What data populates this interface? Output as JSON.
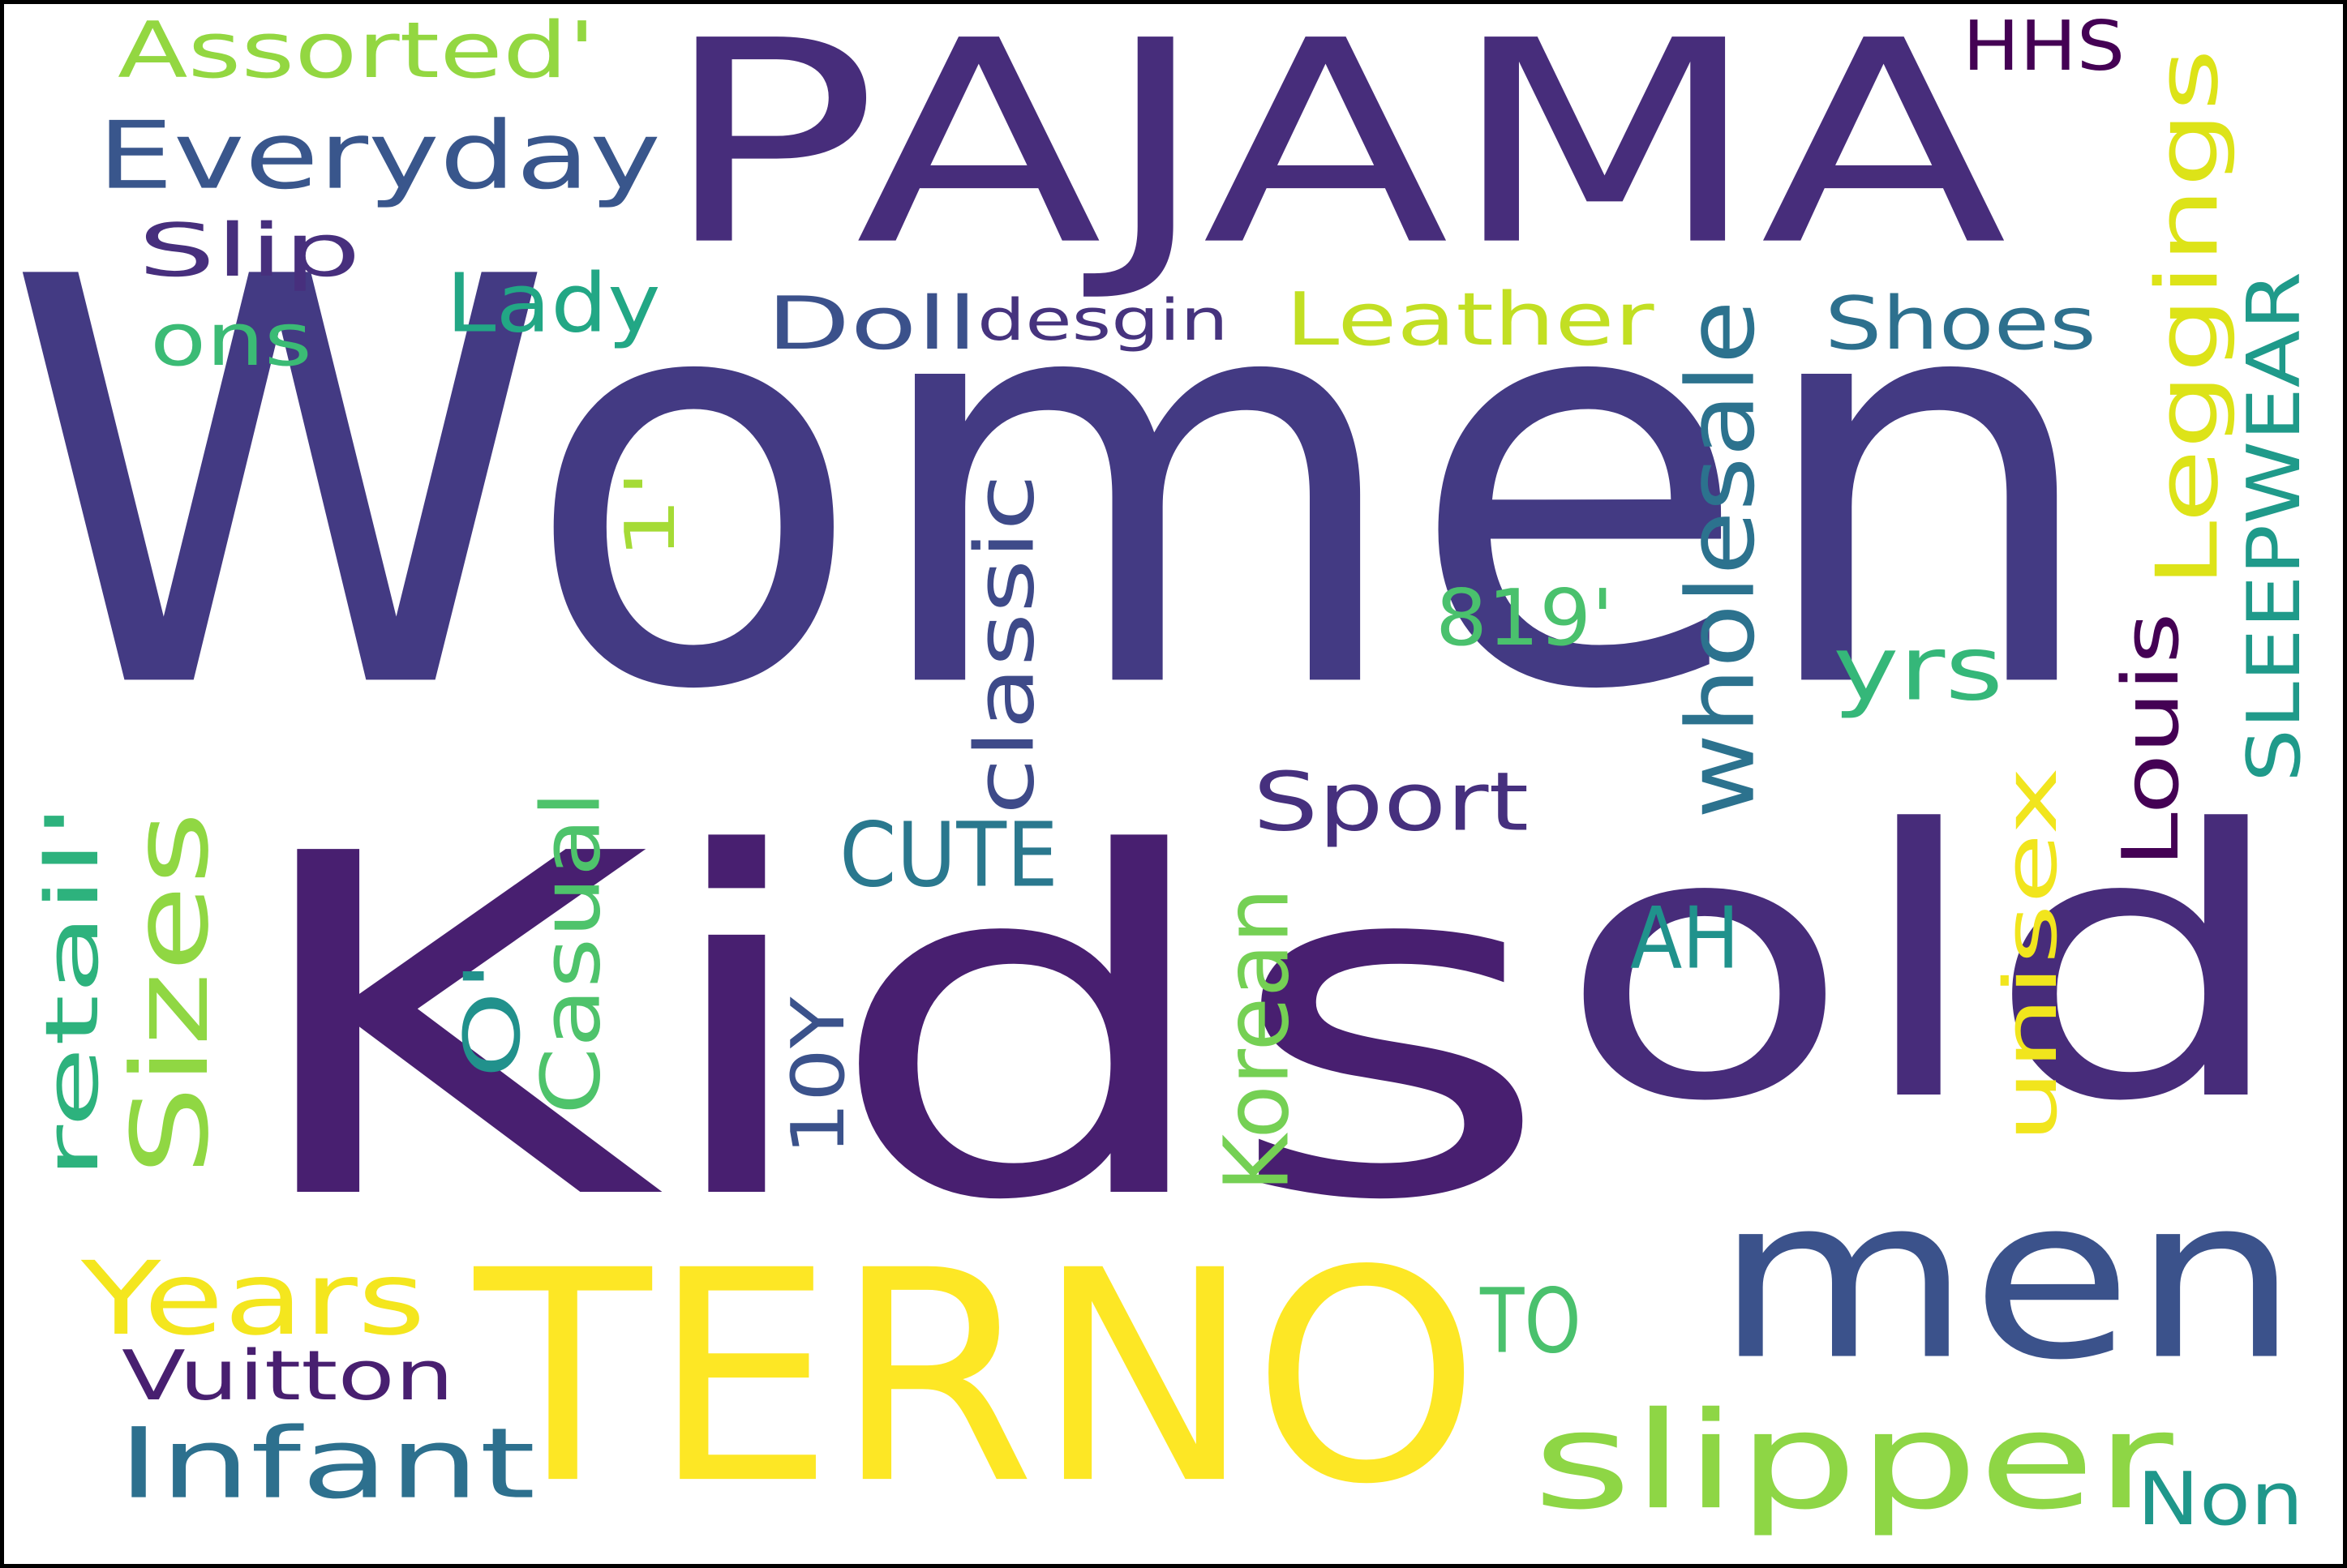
{
  "wordcloud": {
    "background": "#ffffff",
    "border_color": "#000000",
    "words": [
      {
        "text": "Women",
        "color": "#433a83"
      },
      {
        "text": "Kids",
        "color": "#481f70"
      },
      {
        "text": "PAJAMA",
        "color": "#472d7b"
      },
      {
        "text": "old",
        "color": "#472c7a"
      },
      {
        "text": "TERNO",
        "color": "#fde725"
      },
      {
        "text": "men",
        "color": "#3b528b"
      },
      {
        "text": "slipper",
        "color": "#8ed645"
      },
      {
        "text": "Everyday",
        "color": "#39568c"
      },
      {
        "text": "Assorted'",
        "color": "#93d741"
      },
      {
        "text": "Leggings",
        "color": "#dde318"
      },
      {
        "text": "HHS",
        "color": "#440154"
      },
      {
        "text": "Slip",
        "color": "#472f7d"
      },
      {
        "text": "Lady",
        "color": "#22a785"
      },
      {
        "text": "ons",
        "color": "#3bbb75"
      },
      {
        "text": "Doll",
        "color": "#3b518b"
      },
      {
        "text": "desgin",
        "color": "#46337e"
      },
      {
        "text": "Leather",
        "color": "#c2df23"
      },
      {
        "text": "Shoes",
        "color": "#2d708e"
      },
      {
        "text": "SLEEPWEAR",
        "color": "#1f9a8a"
      },
      {
        "text": "wholesale",
        "color": "#2c728e"
      },
      {
        "text": "1'",
        "color": "#a5db36"
      },
      {
        "text": "classic",
        "color": "#3e4a89"
      },
      {
        "text": "819'",
        "color": "#4ac16d"
      },
      {
        "text": "Louis",
        "color": "#440154"
      },
      {
        "text": "yrs",
        "color": "#35b779"
      },
      {
        "text": "Sport",
        "color": "#46307e"
      },
      {
        "text": "unisex",
        "color": "#f1e51d"
      },
      {
        "text": "CUTE",
        "color": "#2a788e"
      },
      {
        "text": "AH",
        "color": "#20928c"
      },
      {
        "text": "retail'",
        "color": "#2db27d"
      },
      {
        "text": "Sizes",
        "color": "#90d743"
      },
      {
        "text": "O'",
        "color": "#21918c"
      },
      {
        "text": "Casual",
        "color": "#4ec36b"
      },
      {
        "text": "10Y",
        "color": "#3b528b"
      },
      {
        "text": "Korean",
        "color": "#75d054"
      },
      {
        "text": "Years",
        "color": "#f4e61e"
      },
      {
        "text": "TO",
        "color": "#4ac16d"
      },
      {
        "text": "Vuitton",
        "color": "#481f70"
      },
      {
        "text": "Infant",
        "color": "#2d708e"
      },
      {
        "text": "Non",
        "color": "#1f978b"
      }
    ]
  }
}
